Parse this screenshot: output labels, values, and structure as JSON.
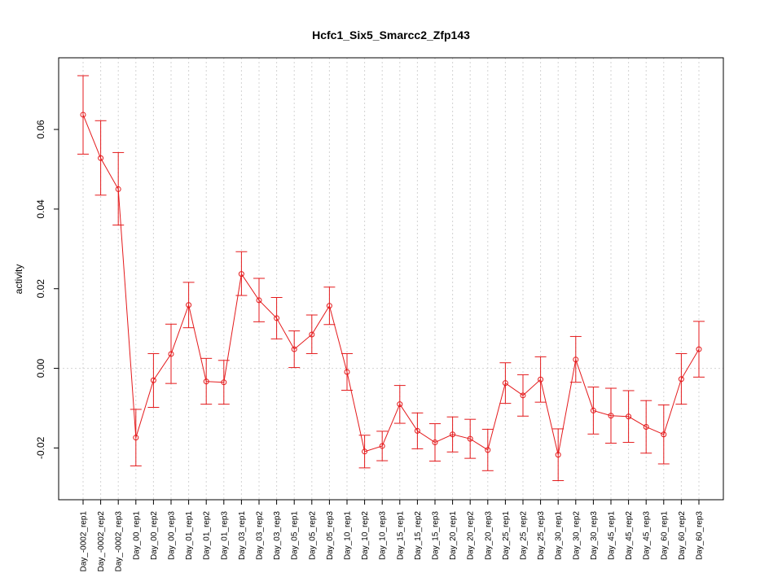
{
  "chart_data": {
    "type": "line",
    "title": "Hcfc1_Six5_Smarcc2_Zfp143",
    "xlabel": "",
    "ylabel": "activity",
    "ylim": [
      -0.033,
      0.078
    ],
    "yticks": [
      -0.02,
      0.0,
      0.02,
      0.04,
      0.06
    ],
    "ytick_labels": [
      "-0.02",
      "0.00",
      "0.02",
      "0.04",
      "0.06"
    ],
    "grid": true,
    "line_color": "#e41a1c",
    "categories": [
      "Day_-0002_rep1",
      "Day_-0002_rep2",
      "Day_-0002_rep3",
      "Day_00_rep1",
      "Day_00_rep2",
      "Day_00_rep3",
      "Day_01_rep1",
      "Day_01_rep2",
      "Day_01_rep3",
      "Day_03_rep1",
      "Day_03_rep2",
      "Day_03_rep3",
      "Day_05_rep1",
      "Day_05_rep2",
      "Day_05_rep3",
      "Day_10_rep1",
      "Day_10_rep2",
      "Day_10_rep3",
      "Day_15_rep1",
      "Day_15_rep2",
      "Day_15_rep3",
      "Day_20_rep1",
      "Day_20_rep2",
      "Day_20_rep3",
      "Day_25_rep1",
      "Day_25_rep2",
      "Day_25_rep3",
      "Day_30_rep1",
      "Day_30_rep2",
      "Day_30_rep3",
      "Day_45_rep1",
      "Day_45_rep2",
      "Day_45_rep3",
      "Day_60_rep1",
      "Day_60_rep2",
      "Day_60_rep3"
    ],
    "series": [
      {
        "values": [
          0.0637,
          0.0528,
          0.045,
          -0.0174,
          -0.003,
          0.0036,
          0.0159,
          -0.0033,
          -0.0035,
          0.0237,
          0.0171,
          0.0126,
          0.0048,
          0.0085,
          0.0157,
          -0.0009,
          -0.0209,
          -0.0195,
          -0.009,
          -0.0157,
          -0.0186,
          -0.0166,
          -0.0177,
          -0.0205,
          -0.0037,
          -0.0068,
          -0.0028,
          -0.0217,
          0.0022,
          -0.0106,
          -0.0119,
          -0.0121,
          -0.0147,
          -0.0166,
          -0.0027,
          0.0048
        ],
        "lower": [
          0.0538,
          0.0435,
          0.036,
          -0.0245,
          -0.0098,
          -0.0038,
          0.0102,
          -0.009,
          -0.009,
          0.0183,
          0.0117,
          0.0074,
          0.0002,
          0.0037,
          0.011,
          -0.0055,
          -0.025,
          -0.0232,
          -0.0138,
          -0.0202,
          -0.0233,
          -0.021,
          -0.0226,
          -0.0257,
          -0.0088,
          -0.012,
          -0.0085,
          -0.0282,
          -0.0035,
          -0.0165,
          -0.0188,
          -0.0186,
          -0.0213,
          -0.024,
          -0.009,
          -0.0022
        ],
        "upper": [
          0.0735,
          0.0622,
          0.0542,
          -0.0103,
          0.0037,
          0.0111,
          0.0216,
          0.0025,
          0.002,
          0.0293,
          0.0226,
          0.0178,
          0.0094,
          0.0134,
          0.0204,
          0.0037,
          -0.0168,
          -0.0158,
          -0.0043,
          -0.0112,
          -0.0139,
          -0.0122,
          -0.0128,
          -0.0153,
          0.0014,
          -0.0016,
          0.0029,
          -0.0152,
          0.008,
          -0.0047,
          -0.005,
          -0.0056,
          -0.0081,
          -0.0092,
          0.0037,
          0.0118
        ]
      }
    ]
  }
}
